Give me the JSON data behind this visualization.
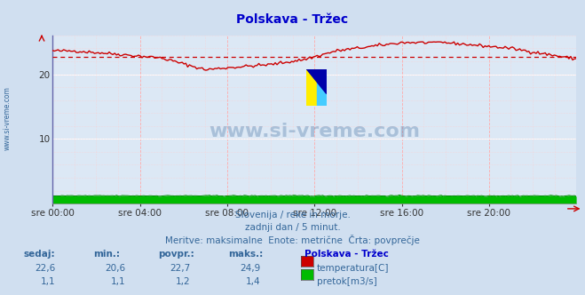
{
  "title": "Polskava - Tržec",
  "bg_color": "#d0dff0",
  "plot_bg_color": "#dce8f5",
  "grid_color_h": "#ffffff",
  "grid_color_v_minor": "#ffaaaa",
  "grid_color_h_minor": "#ffaaaa",
  "xlabel_times": [
    "sre 00:00",
    "sre 04:00",
    "sre 08:00",
    "sre 12:00",
    "sre 16:00",
    "sre 20:00"
  ],
  "ylim": [
    0,
    26
  ],
  "yticks": [
    10,
    20
  ],
  "temp_avg": 22.7,
  "temp_min": 20.6,
  "temp_max": 24.9,
  "temp_sedaj": 22.6,
  "flow_avg": 1.2,
  "flow_min": 1.1,
  "flow_max": 1.4,
  "flow_sedaj": 1.1,
  "temp_color": "#cc0000",
  "flow_color": "#008800",
  "flow_fill_color": "#00bb00",
  "avg_line_color": "#cc0000",
  "watermark": "www.si-vreme.com",
  "subtitle1": "Slovenija / reke in morje.",
  "subtitle2": "zadnji dan / 5 minut.",
  "subtitle3": "Meritve: maksimalne  Enote: metrične  Črta: povprečje",
  "label_color": "#336699",
  "title_color": "#0000cc",
  "left_label": "www.si-vreme.com",
  "stat_headers": [
    "sedaj:",
    "min.:",
    "povpr.:",
    "maks.:"
  ],
  "stat_label": "Polskava - Tržec",
  "stat_temp_label": "temperatura[C]",
  "stat_flow_label": "pretok[m3/s]"
}
